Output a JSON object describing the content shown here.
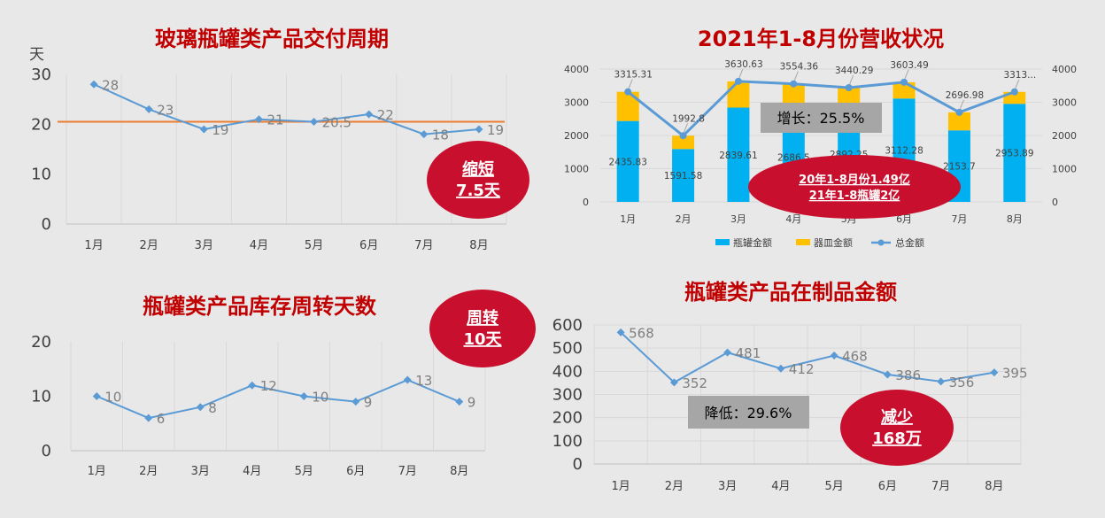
{
  "chart_data": [
    {
      "type": "line",
      "title": "玻璃瓶罐类产品交付周期",
      "ylabel": "天",
      "categories": [
        "1月",
        "2月",
        "3月",
        "4月",
        "5月",
        "6月",
        "7月",
        "8月"
      ],
      "values": [
        28,
        23,
        19,
        21,
        20.5,
        22,
        18,
        19
      ],
      "value_labels": [
        "28",
        "23",
        "19",
        "21",
        "20.5",
        "22",
        "18",
        "19"
      ],
      "ylim": [
        0,
        30
      ],
      "yticks": [
        "0",
        "10",
        "20",
        "30"
      ],
      "reference_line": 20.5,
      "callout": {
        "line1": "缩短",
        "line2": "7.5天"
      }
    },
    {
      "type": "bar",
      "title": "2021年1-8月份营收状况",
      "categories": [
        "1月",
        "2月",
        "3月",
        "4月",
        "5月",
        "6月",
        "7月",
        "8月"
      ],
      "ylim": [
        0,
        4000
      ],
      "yticks": [
        "0",
        "1000",
        "2000",
        "3000",
        "4000"
      ],
      "series": [
        {
          "name": "瓶罐金额",
          "values": [
            2435.83,
            1591.58,
            2839.61,
            2686.5,
            2892.25,
            3112.28,
            2153.7,
            2953.89
          ],
          "value_labels": [
            "2435.83",
            "1591.58",
            "2839.61",
            "2686.5",
            "2892.25",
            "3112.28",
            "2153.7",
            "2953.89"
          ]
        },
        {
          "name": "器皿金额",
          "values": [
            879.48,
            401.22,
            791.02,
            867.86,
            548.04,
            491.21,
            543.28,
            359.11
          ]
        },
        {
          "name": "总金额",
          "type": "line",
          "values": [
            3315.31,
            1992.8,
            3630.63,
            3554.36,
            3440.29,
            3603.49,
            2696.98,
            3313
          ],
          "value_labels": [
            "3315.31",
            "1992.8",
            "3630.63",
            "3554.36",
            "3440.29",
            "3603.49",
            "2696.98",
            "3313..."
          ]
        }
      ],
      "growth_box": "增长：25.5%",
      "callout": {
        "line1": "20年1-8月份1.49亿",
        "line2": "21年1-8瓶罐2亿"
      }
    },
    {
      "type": "line",
      "title": "瓶罐类产品库存周转天数",
      "categories": [
        "1月",
        "2月",
        "3月",
        "4月",
        "5月",
        "6月",
        "7月",
        "8月"
      ],
      "values": [
        10,
        6,
        8,
        12,
        10,
        9,
        13,
        9
      ],
      "value_labels": [
        "10",
        "6",
        "8",
        "12",
        "10",
        "9",
        "13",
        "9"
      ],
      "ylim": [
        0,
        20
      ],
      "yticks": [
        "0",
        "10",
        "20"
      ],
      "callout": {
        "line1": "周转",
        "line2": "10天"
      }
    },
    {
      "type": "line",
      "title": "瓶罐类产品在制品金额",
      "categories": [
        "1月",
        "2月",
        "3月",
        "4月",
        "5月",
        "6月",
        "7月",
        "8月"
      ],
      "values": [
        568,
        352,
        481,
        412,
        468,
        386,
        356,
        395
      ],
      "value_labels": [
        "568",
        "352",
        "481",
        "412",
        "468",
        "386",
        "356",
        "395"
      ],
      "ylim": [
        0,
        600
      ],
      "yticks": [
        "0",
        "100",
        "200",
        "300",
        "400",
        "500",
        "600"
      ],
      "reduction_box": "降低：29.6%",
      "callout": {
        "line1": "减少",
        "line2": "168万"
      }
    }
  ],
  "colors": {
    "title_red": "#c00000",
    "line_blue": "#5b9bd5",
    "bar_blue": "#00b0f0",
    "bar_yellow": "#ffc000",
    "ref_orange": "#ed7d31",
    "callout_red": "#c8102e",
    "box_gray": "#a6a6a6"
  }
}
